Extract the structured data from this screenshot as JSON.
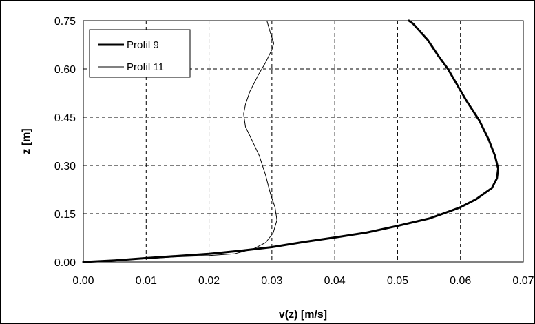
{
  "chart_data": {
    "type": "line",
    "xlabel": "v(z) [m/s]",
    "ylabel": "z [m]",
    "xlim": [
      0,
      0.07
    ],
    "ylim": [
      0,
      0.75
    ],
    "x_ticks": [
      "0.00",
      "0.01",
      "0.02",
      "0.03",
      "0.04",
      "0.05",
      "0.06",
      "0.07"
    ],
    "y_ticks": [
      "0.00",
      "0.15",
      "0.30",
      "0.45",
      "0.60",
      "0.75"
    ],
    "grid": true,
    "legend_position": "top-left",
    "series": [
      {
        "name": "Profil 9",
        "line_weight": "thick",
        "color": "#000000",
        "points": [
          [
            0.0,
            0.0
          ],
          [
            0.005,
            0.005
          ],
          [
            0.01,
            0.012
          ],
          [
            0.02,
            0.025
          ],
          [
            0.025,
            0.035
          ],
          [
            0.03,
            0.046
          ],
          [
            0.035,
            0.062
          ],
          [
            0.04,
            0.076
          ],
          [
            0.045,
            0.091
          ],
          [
            0.05,
            0.112
          ],
          [
            0.055,
            0.135
          ],
          [
            0.0575,
            0.152
          ],
          [
            0.06,
            0.17
          ],
          [
            0.0625,
            0.195
          ],
          [
            0.065,
            0.23
          ],
          [
            0.0658,
            0.26
          ],
          [
            0.066,
            0.29
          ],
          [
            0.0655,
            0.33
          ],
          [
            0.0645,
            0.38
          ],
          [
            0.063,
            0.44
          ],
          [
            0.061,
            0.5
          ],
          [
            0.0595,
            0.55
          ],
          [
            0.058,
            0.6
          ],
          [
            0.0565,
            0.64
          ],
          [
            0.0548,
            0.69
          ],
          [
            0.0525,
            0.74
          ],
          [
            0.0518,
            0.75
          ]
        ]
      },
      {
        "name": "Profil 11",
        "line_weight": "thin",
        "color": "#000000",
        "points": [
          [
            0.0,
            0.0
          ],
          [
            0.005,
            0.005
          ],
          [
            0.01,
            0.01
          ],
          [
            0.015,
            0.016
          ],
          [
            0.02,
            0.02
          ],
          [
            0.024,
            0.025
          ],
          [
            0.027,
            0.04
          ],
          [
            0.029,
            0.06
          ],
          [
            0.0302,
            0.09
          ],
          [
            0.0308,
            0.13
          ],
          [
            0.0305,
            0.17
          ],
          [
            0.0298,
            0.21
          ],
          [
            0.029,
            0.27
          ],
          [
            0.028,
            0.33
          ],
          [
            0.0268,
            0.38
          ],
          [
            0.0258,
            0.42
          ],
          [
            0.0255,
            0.46
          ],
          [
            0.0258,
            0.49
          ],
          [
            0.0265,
            0.53
          ],
          [
            0.0278,
            0.58
          ],
          [
            0.029,
            0.62
          ],
          [
            0.03,
            0.66
          ],
          [
            0.0303,
            0.68
          ],
          [
            0.0298,
            0.71
          ],
          [
            0.0292,
            0.75
          ]
        ]
      }
    ]
  }
}
